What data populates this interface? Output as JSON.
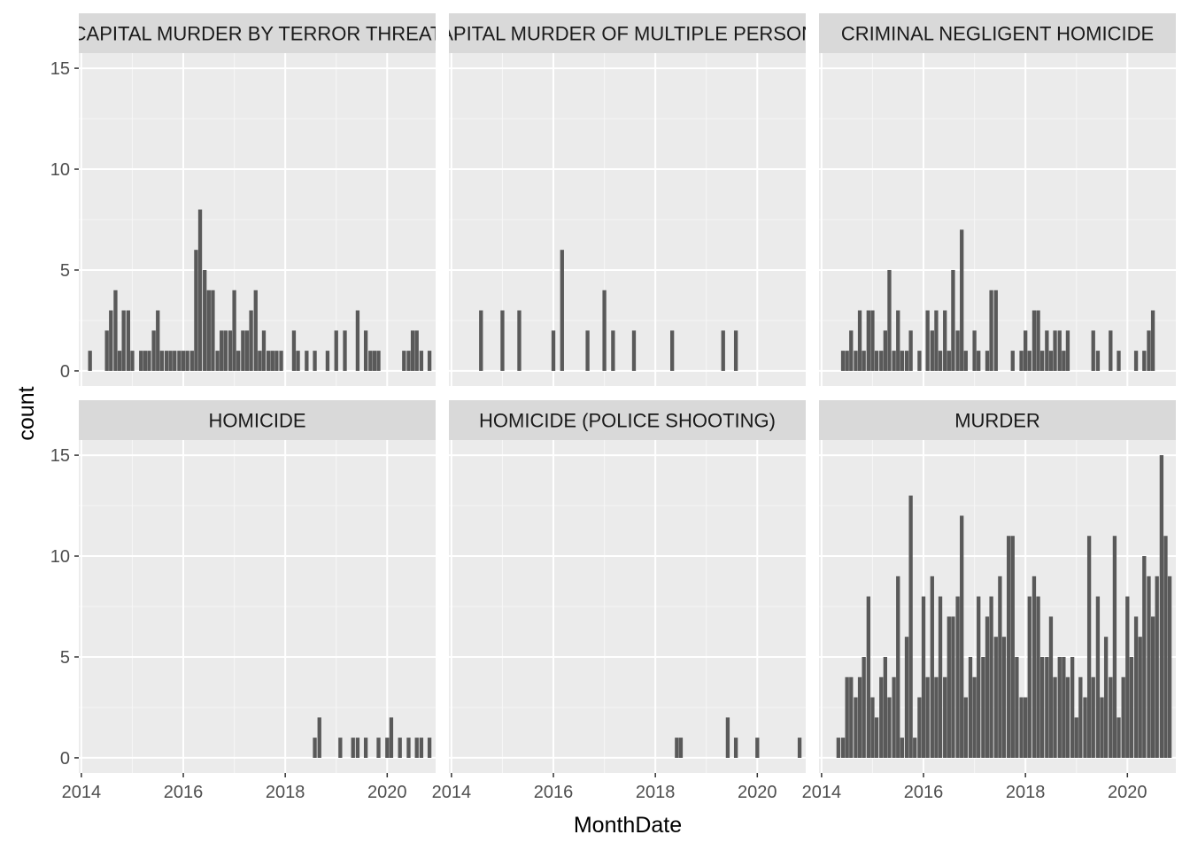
{
  "chart_data": {
    "type": "bar",
    "layout": "facet-wrap",
    "ncol": 3,
    "xlabel": "MonthDate",
    "ylabel": "count",
    "x_range": [
      2013.95,
      2020.95
    ],
    "y_range": [
      -0.75,
      15.75
    ],
    "xticks": [
      2014,
      2016,
      2018,
      2020
    ],
    "x_tick_labels": [
      "2014",
      "2016",
      "2018",
      "2020"
    ],
    "yticks": [
      0,
      5,
      10,
      15
    ],
    "y_tick_labels": [
      "0",
      "5",
      "10",
      "15"
    ],
    "month_step": 0.0833,
    "panels": [
      {
        "title": "CAPITAL MURDER BY TERROR THREAT",
        "series": [
          {
            "name": "count",
            "x": [
              2014.17,
              2014.5,
              2014.58,
              2014.67,
              2014.75,
              2014.83,
              2014.92,
              2015.0,
              2015.17,
              2015.25,
              2015.33,
              2015.42,
              2015.5,
              2015.58,
              2015.67,
              2015.75,
              2015.83,
              2015.92,
              2016.0,
              2016.08,
              2016.17,
              2016.25,
              2016.33,
              2016.42,
              2016.5,
              2016.58,
              2016.67,
              2016.75,
              2016.83,
              2016.92,
              2017.0,
              2017.08,
              2017.17,
              2017.25,
              2017.33,
              2017.42,
              2017.5,
              2017.58,
              2017.67,
              2017.75,
              2017.83,
              2017.92,
              2018.17,
              2018.25,
              2018.42,
              2018.58,
              2018.83,
              2019.0,
              2019.17,
              2019.42,
              2019.58,
              2019.67,
              2019.75,
              2019.83,
              2020.33,
              2020.42,
              2020.5,
              2020.58,
              2020.67,
              2020.83
            ],
            "values": [
              1,
              2,
              3,
              4,
              1,
              3,
              3,
              1,
              1,
              1,
              1,
              2,
              3,
              1,
              1,
              1,
              1,
              1,
              1,
              1,
              1,
              6,
              8,
              5,
              4,
              4,
              1,
              2,
              2,
              2,
              4,
              1,
              2,
              2,
              3,
              4,
              1,
              2,
              1,
              1,
              1,
              1,
              2,
              1,
              1,
              1,
              1,
              2,
              2,
              3,
              2,
              1,
              1,
              1,
              1,
              1,
              2,
              2,
              1,
              1
            ]
          }
        ]
      },
      {
        "title": "CAPITAL MURDER OF MULTIPLE PERSONS",
        "series": [
          {
            "name": "count",
            "x": [
              2014.58,
              2015.0,
              2015.33,
              2016.0,
              2016.17,
              2016.67,
              2017.0,
              2017.17,
              2017.58,
              2018.33,
              2019.33,
              2019.58
            ],
            "values": [
              3,
              3,
              3,
              2,
              6,
              2,
              4,
              2,
              2,
              2,
              2,
              2
            ]
          }
        ]
      },
      {
        "title": "CRIMINAL NEGLIGENT HOMICIDE",
        "series": [
          {
            "name": "count",
            "x": [
              2014.42,
              2014.5,
              2014.58,
              2014.67,
              2014.75,
              2014.83,
              2014.92,
              2015.0,
              2015.08,
              2015.17,
              2015.25,
              2015.33,
              2015.42,
              2015.5,
              2015.58,
              2015.67,
              2015.75,
              2015.92,
              2016.08,
              2016.17,
              2016.25,
              2016.33,
              2016.42,
              2016.5,
              2016.58,
              2016.67,
              2016.75,
              2016.83,
              2017.0,
              2017.08,
              2017.25,
              2017.33,
              2017.42,
              2017.75,
              2017.92,
              2018.0,
              2018.08,
              2018.17,
              2018.25,
              2018.33,
              2018.42,
              2018.5,
              2018.58,
              2018.67,
              2018.75,
              2018.83,
              2019.33,
              2019.42,
              2019.67,
              2019.83,
              2020.17,
              2020.33,
              2020.42,
              2020.5
            ],
            "values": [
              1,
              1,
              2,
              1,
              3,
              1,
              3,
              3,
              1,
              1,
              2,
              5,
              1,
              3,
              1,
              1,
              2,
              1,
              3,
              2,
              3,
              1,
              3,
              1,
              5,
              2,
              7,
              1,
              2,
              1,
              1,
              4,
              4,
              1,
              1,
              2,
              1,
              3,
              3,
              1,
              2,
              1,
              2,
              2,
              1,
              2,
              2,
              1,
              2,
              1,
              1,
              1,
              2,
              3
            ]
          }
        ]
      },
      {
        "title": "HOMICIDE",
        "series": [
          {
            "name": "count",
            "x": [
              2018.58,
              2018.67,
              2019.08,
              2019.33,
              2019.42,
              2019.58,
              2019.83,
              2020.0,
              2020.08,
              2020.25,
              2020.42,
              2020.58,
              2020.67,
              2020.83
            ],
            "values": [
              1,
              2,
              1,
              1,
              1,
              1,
              1,
              1,
              2,
              1,
              1,
              1,
              1,
              1
            ]
          }
        ]
      },
      {
        "title": "HOMICIDE (POLICE SHOOTING)",
        "series": [
          {
            "name": "count",
            "x": [
              2018.42,
              2018.5,
              2019.42,
              2019.58,
              2020.0,
              2020.83
            ],
            "values": [
              1,
              1,
              2,
              1,
              1,
              1
            ]
          }
        ]
      },
      {
        "title": "MURDER",
        "series": [
          {
            "name": "count",
            "x": [
              2014.33,
              2014.42,
              2014.5,
              2014.58,
              2014.67,
              2014.75,
              2014.83,
              2014.92,
              2015.0,
              2015.08,
              2015.17,
              2015.25,
              2015.33,
              2015.42,
              2015.5,
              2015.58,
              2015.67,
              2015.75,
              2015.83,
              2015.92,
              2016.0,
              2016.08,
              2016.17,
              2016.25,
              2016.33,
              2016.42,
              2016.5,
              2016.58,
              2016.67,
              2016.75,
              2016.83,
              2016.92,
              2017.0,
              2017.08,
              2017.17,
              2017.25,
              2017.33,
              2017.42,
              2017.5,
              2017.58,
              2017.67,
              2017.75,
              2017.83,
              2017.92,
              2018.0,
              2018.08,
              2018.17,
              2018.25,
              2018.33,
              2018.42,
              2018.5,
              2018.58,
              2018.67,
              2018.75,
              2018.83,
              2018.92,
              2019.0,
              2019.08,
              2019.17,
              2019.25,
              2019.33,
              2019.42,
              2019.5,
              2019.58,
              2019.67,
              2019.75,
              2019.83,
              2019.92,
              2020.0,
              2020.08,
              2020.17,
              2020.25,
              2020.33,
              2020.42,
              2020.5,
              2020.58,
              2020.67,
              2020.75,
              2020.83
            ],
            "values": [
              1,
              1,
              4,
              4,
              3,
              4,
              5,
              8,
              3,
              2,
              4,
              5,
              3,
              4,
              9,
              1,
              6,
              13,
              1,
              3,
              8,
              4,
              9,
              4,
              8,
              4,
              7,
              7,
              8,
              12,
              3,
              5,
              4,
              8,
              5,
              7,
              8,
              6,
              9,
              6,
              11,
              11,
              5,
              3,
              3,
              8,
              9,
              8,
              5,
              5,
              7,
              4,
              5,
              5,
              4,
              5,
              2,
              4,
              3,
              11,
              4,
              8,
              3,
              6,
              4,
              11,
              2,
              4,
              8,
              5,
              7,
              6,
              10,
              9,
              7,
              9,
              15,
              11,
              9
            ]
          }
        ]
      }
    ]
  }
}
